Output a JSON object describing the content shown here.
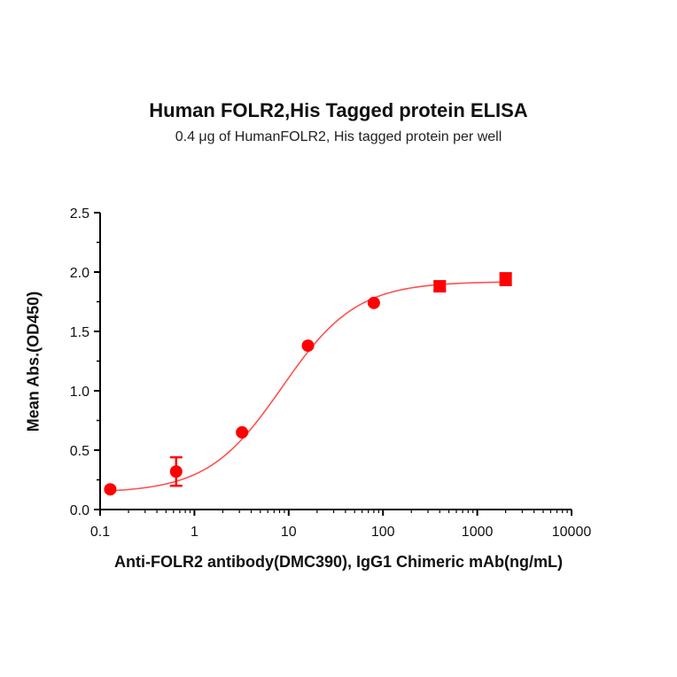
{
  "chart_data": {
    "type": "scatter",
    "title": "Human FOLR2,His Tagged protein ELISA",
    "subtitle": "0.4 μg of HumanFOLR2, His tagged protein per well",
    "xlabel": "Anti-FOLR2 antibody(DMC390), IgG1 Chimeric mAb(ng/mL)",
    "ylabel": "Mean Abs.(OD450)",
    "x_scale": "log",
    "xlim": [
      0.1,
      10000
    ],
    "ylim": [
      0.0,
      2.5
    ],
    "x_ticks": [
      "0.1",
      "1",
      "10",
      "100",
      "1000",
      "10000"
    ],
    "y_ticks": [
      "0.0",
      "0.5",
      "1.0",
      "1.5",
      "2.0",
      "2.5"
    ],
    "grid": false,
    "colors": {
      "series": "#ff0000",
      "curve": "#ff5050",
      "axis": "#000000"
    },
    "series": [
      {
        "x": [
          0.128,
          0.64,
          3.2,
          16,
          80,
          400,
          2000
        ],
        "y": [
          0.17,
          0.32,
          0.65,
          1.38,
          1.74,
          1.88,
          1.94
        ],
        "error": [
          0.0,
          0.12,
          0.0,
          0.0,
          0.0,
          0.04,
          0.05
        ],
        "markers": [
          "circle",
          "circle",
          "circle",
          "circle",
          "circle",
          "square",
          "square"
        ]
      }
    ],
    "fit_curve": {
      "model": "4PL",
      "bottom": 0.14,
      "top": 1.92,
      "ec50": 8.5,
      "hill": 1.1
    }
  }
}
